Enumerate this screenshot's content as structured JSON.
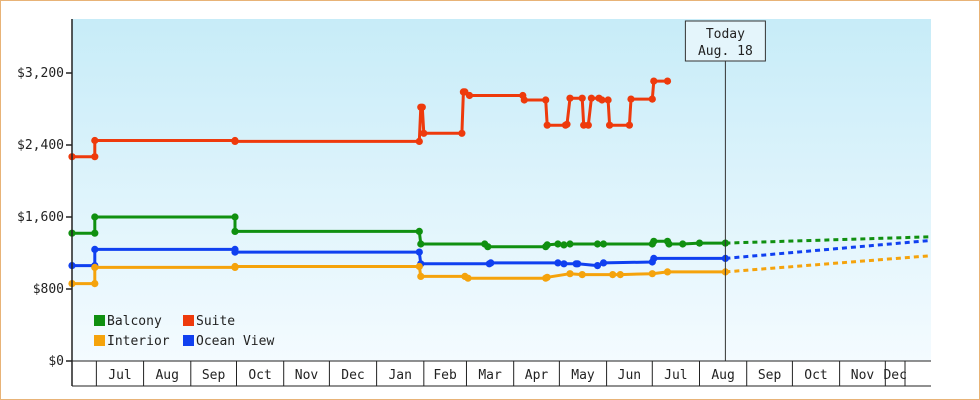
{
  "chart_data": {
    "type": "line",
    "title": "",
    "xlabel": "",
    "ylabel": "",
    "ylim": [
      0,
      3200
    ],
    "yticks": [
      {
        "value": 0,
        "label": "$0"
      },
      {
        "value": 800,
        "label": "$800"
      },
      {
        "value": 1600,
        "label": "$1,600"
      },
      {
        "value": 2400,
        "label": "$2,400"
      },
      {
        "value": 3200,
        "label": "$3,200"
      }
    ],
    "xrange": [
      "2021-06-15",
      "2022-12-31"
    ],
    "months": [
      {
        "label": "Jul",
        "start": "2021-07-01"
      },
      {
        "label": "Aug",
        "start": "2021-08-01"
      },
      {
        "label": "Sep",
        "start": "2021-09-01"
      },
      {
        "label": "Oct",
        "start": "2021-10-01"
      },
      {
        "label": "Nov",
        "start": "2021-11-01"
      },
      {
        "label": "Dec",
        "start": "2021-12-01"
      },
      {
        "label": "Jan",
        "start": "2022-01-01"
      },
      {
        "label": "Feb",
        "start": "2022-02-01"
      },
      {
        "label": "Mar",
        "start": "2022-03-01"
      },
      {
        "label": "Apr",
        "start": "2022-04-01"
      },
      {
        "label": "May",
        "start": "2022-05-01"
      },
      {
        "label": "Jun",
        "start": "2022-06-01"
      },
      {
        "label": "Jul",
        "start": "2022-07-01"
      },
      {
        "label": "Aug",
        "start": "2022-08-01"
      },
      {
        "label": "Sep",
        "start": "2022-09-01"
      },
      {
        "label": "Oct",
        "start": "2022-10-01"
      },
      {
        "label": "Nov",
        "start": "2022-11-01"
      },
      {
        "label": "Dec",
        "start": "2022-12-01"
      }
    ],
    "today": {
      "line1": "Today",
      "line2": "Aug. 18",
      "date": "2022-08-18"
    },
    "legend": [
      {
        "name": "Balcony",
        "color": "#109010"
      },
      {
        "name": "Suite",
        "color": "#ee3a0c"
      },
      {
        "name": "Interior",
        "color": "#f5a30c"
      },
      {
        "name": "Ocean View",
        "color": "#1040f0"
      }
    ],
    "series": [
      {
        "name": "Suite",
        "color": "#ee3a0c",
        "points": [
          [
            "2021-06-15",
            2270
          ],
          [
            "2021-06-30",
            2270
          ],
          [
            "2021-06-30",
            2450
          ],
          [
            "2021-09-30",
            2450
          ],
          [
            "2021-09-30",
            2440
          ],
          [
            "2022-01-29",
            2440
          ],
          [
            "2022-01-30",
            2820
          ],
          [
            "2022-01-31",
            2820
          ],
          [
            "2022-02-01",
            2530
          ],
          [
            "2022-02-26",
            2530
          ],
          [
            "2022-02-27",
            2990
          ],
          [
            "2022-02-28",
            2990
          ],
          [
            "2022-03-03",
            2950
          ],
          [
            "2022-04-07",
            2950
          ],
          [
            "2022-04-08",
            2900
          ],
          [
            "2022-04-22",
            2900
          ],
          [
            "2022-04-23",
            2620
          ],
          [
            "2022-05-05",
            2620
          ],
          [
            "2022-05-06",
            2630
          ],
          [
            "2022-05-08",
            2920
          ],
          [
            "2022-05-16",
            2920
          ],
          [
            "2022-05-17",
            2620
          ],
          [
            "2022-05-20",
            2620
          ],
          [
            "2022-05-22",
            2920
          ],
          [
            "2022-05-27",
            2920
          ],
          [
            "2022-05-29",
            2900
          ],
          [
            "2022-06-02",
            2900
          ],
          [
            "2022-06-03",
            2620
          ],
          [
            "2022-06-16",
            2620
          ],
          [
            "2022-06-17",
            2910
          ],
          [
            "2022-07-01",
            2910
          ],
          [
            "2022-07-02",
            3110
          ],
          [
            "2022-07-11",
            3110
          ]
        ]
      },
      {
        "name": "Balcony",
        "color": "#109010",
        "points": [
          [
            "2021-06-15",
            1420
          ],
          [
            "2021-06-30",
            1420
          ],
          [
            "2021-06-30",
            1600
          ],
          [
            "2021-09-30",
            1600
          ],
          [
            "2021-09-30",
            1440
          ],
          [
            "2022-01-29",
            1440
          ],
          [
            "2022-01-30",
            1300
          ],
          [
            "2022-03-13",
            1300
          ],
          [
            "2022-03-15",
            1270
          ],
          [
            "2022-04-22",
            1270
          ],
          [
            "2022-04-23",
            1290
          ],
          [
            "2022-04-30",
            1300
          ],
          [
            "2022-05-04",
            1290
          ],
          [
            "2022-05-08",
            1300
          ],
          [
            "2022-05-26",
            1300
          ],
          [
            "2022-05-30",
            1300
          ],
          [
            "2022-07-01",
            1300
          ],
          [
            "2022-07-02",
            1330
          ],
          [
            "2022-07-11",
            1330
          ],
          [
            "2022-07-12",
            1300
          ],
          [
            "2022-07-21",
            1300
          ],
          [
            "2022-08-01",
            1310
          ],
          [
            "2022-08-18",
            1310
          ]
        ],
        "forecast": [
          [
            "2022-08-18",
            1310
          ],
          [
            "2022-12-31",
            1380
          ]
        ]
      },
      {
        "name": "Ocean View",
        "color": "#1040f0",
        "points": [
          [
            "2021-06-15",
            1060
          ],
          [
            "2021-06-30",
            1060
          ],
          [
            "2021-06-30",
            1240
          ],
          [
            "2021-09-30",
            1240
          ],
          [
            "2021-09-30",
            1210
          ],
          [
            "2022-01-29",
            1210
          ],
          [
            "2022-01-30",
            1080
          ],
          [
            "2022-03-16",
            1080
          ],
          [
            "2022-03-17",
            1090
          ],
          [
            "2022-04-30",
            1090
          ],
          [
            "2022-05-04",
            1080
          ],
          [
            "2022-05-12",
            1080
          ],
          [
            "2022-05-13",
            1080
          ],
          [
            "2022-05-26",
            1060
          ],
          [
            "2022-05-30",
            1090
          ],
          [
            "2022-07-01",
            1100
          ],
          [
            "2022-07-02",
            1140
          ],
          [
            "2022-08-18",
            1140
          ]
        ],
        "forecast": [
          [
            "2022-08-18",
            1140
          ],
          [
            "2022-12-31",
            1340
          ]
        ]
      },
      {
        "name": "Interior",
        "color": "#f5a30c",
        "points": [
          [
            "2021-06-15",
            860
          ],
          [
            "2021-06-30",
            860
          ],
          [
            "2021-06-30",
            1040
          ],
          [
            "2021-09-30",
            1040
          ],
          [
            "2021-09-30",
            1050
          ],
          [
            "2022-01-29",
            1050
          ],
          [
            "2022-01-30",
            940
          ],
          [
            "2022-02-28",
            940
          ],
          [
            "2022-03-02",
            920
          ],
          [
            "2022-04-22",
            920
          ],
          [
            "2022-04-23",
            930
          ],
          [
            "2022-05-08",
            970
          ],
          [
            "2022-05-16",
            960
          ],
          [
            "2022-06-05",
            960
          ],
          [
            "2022-06-10",
            960
          ],
          [
            "2022-07-01",
            970
          ],
          [
            "2022-07-11",
            990
          ],
          [
            "2022-08-18",
            990
          ]
        ],
        "forecast": [
          [
            "2022-08-18",
            990
          ],
          [
            "2022-12-31",
            1170
          ]
        ]
      }
    ]
  }
}
